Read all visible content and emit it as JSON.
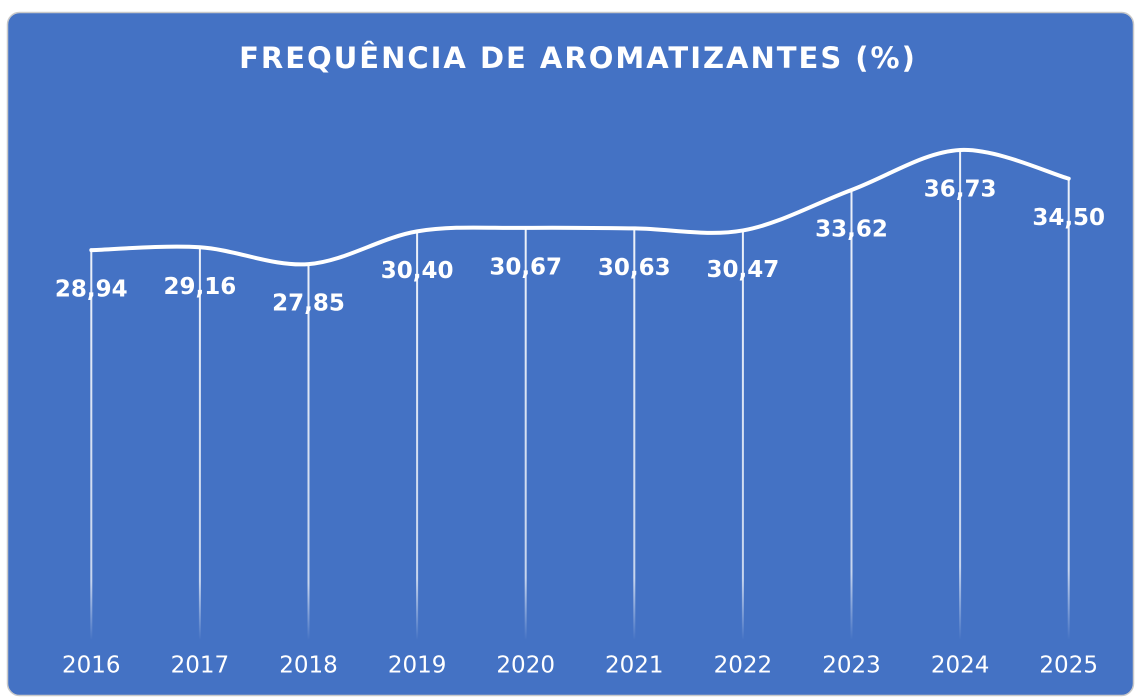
{
  "chart_data": {
    "type": "line",
    "title": "FREQUÊNCIA DE AROMATIZANTES (%)",
    "categories": [
      "2016",
      "2017",
      "2018",
      "2019",
      "2020",
      "2021",
      "2022",
      "2023",
      "2024",
      "2025"
    ],
    "values": [
      28.94,
      29.16,
      27.85,
      30.4,
      30.67,
      30.63,
      30.47,
      33.62,
      36.73,
      34.5
    ],
    "value_labels": [
      "28,94",
      "29,16",
      "27,85",
      "30,40",
      "30,67",
      "30,63",
      "30,47",
      "33,62",
      "36,73",
      "34,50"
    ],
    "color": "#ffffff",
    "background": "#4472c4",
    "ylim": [
      0,
      40
    ],
    "drop_lines": true
  }
}
